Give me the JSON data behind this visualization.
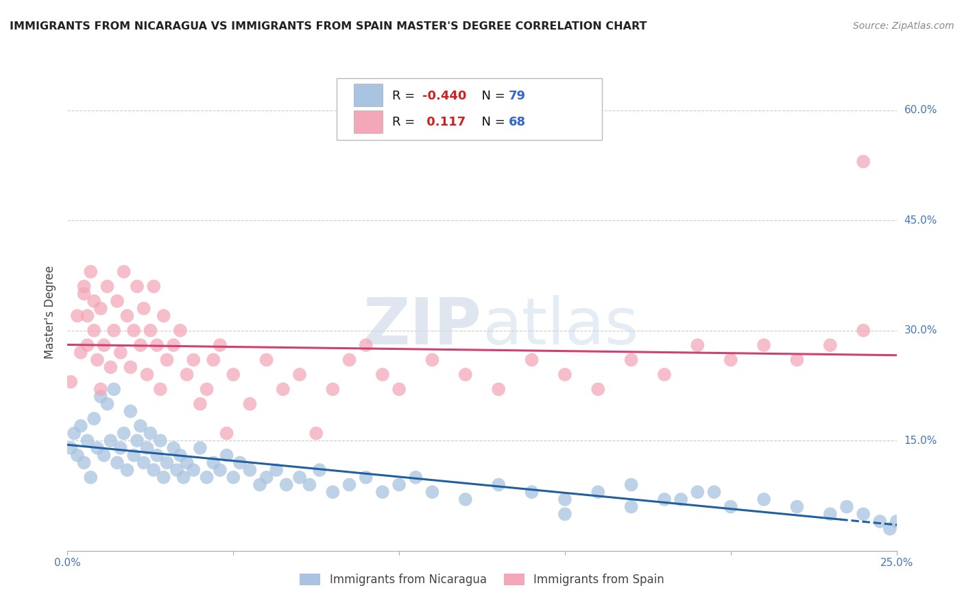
{
  "title": "IMMIGRANTS FROM NICARAGUA VS IMMIGRANTS FROM SPAIN MASTER'S DEGREE CORRELATION CHART",
  "source": "Source: ZipAtlas.com",
  "ylabel": "Master's Degree",
  "xlim": [
    0.0,
    0.25
  ],
  "ylim": [
    0.0,
    0.65
  ],
  "grid_color": "#cccccc",
  "background_color": "#ffffff",
  "nicaragua_color": "#a8c4e0",
  "spain_color": "#f4a7b9",
  "nicaragua_line_color": "#2060a0",
  "spain_line_color": "#d04070",
  "R_nicaragua": -0.44,
  "N_nicaragua": 79,
  "R_spain": 0.117,
  "N_spain": 68,
  "legend_label_nicaragua": "Immigrants from Nicaragua",
  "legend_label_spain": "Immigrants from Spain",
  "nicaragua_x": [
    0.001,
    0.002,
    0.003,
    0.004,
    0.005,
    0.006,
    0.007,
    0.008,
    0.009,
    0.01,
    0.011,
    0.012,
    0.013,
    0.014,
    0.015,
    0.016,
    0.017,
    0.018,
    0.019,
    0.02,
    0.021,
    0.022,
    0.023,
    0.024,
    0.025,
    0.026,
    0.027,
    0.028,
    0.029,
    0.03,
    0.032,
    0.033,
    0.034,
    0.035,
    0.036,
    0.038,
    0.04,
    0.042,
    0.044,
    0.046,
    0.048,
    0.05,
    0.052,
    0.055,
    0.058,
    0.06,
    0.063,
    0.066,
    0.07,
    0.073,
    0.076,
    0.08,
    0.085,
    0.09,
    0.095,
    0.1,
    0.105,
    0.11,
    0.12,
    0.13,
    0.14,
    0.15,
    0.16,
    0.17,
    0.18,
    0.19,
    0.2,
    0.21,
    0.22,
    0.23,
    0.235,
    0.24,
    0.245,
    0.248,
    0.25,
    0.15,
    0.17,
    0.185,
    0.195
  ],
  "nicaragua_y": [
    0.14,
    0.16,
    0.13,
    0.17,
    0.12,
    0.15,
    0.1,
    0.18,
    0.14,
    0.21,
    0.13,
    0.2,
    0.15,
    0.22,
    0.12,
    0.14,
    0.16,
    0.11,
    0.19,
    0.13,
    0.15,
    0.17,
    0.12,
    0.14,
    0.16,
    0.11,
    0.13,
    0.15,
    0.1,
    0.12,
    0.14,
    0.11,
    0.13,
    0.1,
    0.12,
    0.11,
    0.14,
    0.1,
    0.12,
    0.11,
    0.13,
    0.1,
    0.12,
    0.11,
    0.09,
    0.1,
    0.11,
    0.09,
    0.1,
    0.09,
    0.11,
    0.08,
    0.09,
    0.1,
    0.08,
    0.09,
    0.1,
    0.08,
    0.07,
    0.09,
    0.08,
    0.07,
    0.08,
    0.09,
    0.07,
    0.08,
    0.06,
    0.07,
    0.06,
    0.05,
    0.06,
    0.05,
    0.04,
    0.03,
    0.04,
    0.05,
    0.06,
    0.07,
    0.08
  ],
  "spain_x": [
    0.001,
    0.003,
    0.004,
    0.005,
    0.006,
    0.007,
    0.008,
    0.009,
    0.01,
    0.011,
    0.012,
    0.013,
    0.014,
    0.015,
    0.016,
    0.017,
    0.018,
    0.019,
    0.02,
    0.021,
    0.022,
    0.023,
    0.024,
    0.025,
    0.026,
    0.027,
    0.028,
    0.029,
    0.03,
    0.032,
    0.034,
    0.036,
    0.038,
    0.04,
    0.042,
    0.044,
    0.046,
    0.048,
    0.05,
    0.055,
    0.06,
    0.065,
    0.07,
    0.075,
    0.08,
    0.085,
    0.09,
    0.095,
    0.1,
    0.11,
    0.12,
    0.13,
    0.14,
    0.15,
    0.16,
    0.17,
    0.18,
    0.19,
    0.2,
    0.21,
    0.22,
    0.23,
    0.24,
    0.005,
    0.006,
    0.008,
    0.01,
    0.24
  ],
  "spain_y": [
    0.23,
    0.32,
    0.27,
    0.35,
    0.28,
    0.38,
    0.3,
    0.26,
    0.33,
    0.28,
    0.36,
    0.25,
    0.3,
    0.34,
    0.27,
    0.38,
    0.32,
    0.25,
    0.3,
    0.36,
    0.28,
    0.33,
    0.24,
    0.3,
    0.36,
    0.28,
    0.22,
    0.32,
    0.26,
    0.28,
    0.3,
    0.24,
    0.26,
    0.2,
    0.22,
    0.26,
    0.28,
    0.16,
    0.24,
    0.2,
    0.26,
    0.22,
    0.24,
    0.16,
    0.22,
    0.26,
    0.28,
    0.24,
    0.22,
    0.26,
    0.24,
    0.22,
    0.26,
    0.24,
    0.22,
    0.26,
    0.24,
    0.28,
    0.26,
    0.28,
    0.26,
    0.28,
    0.3,
    0.36,
    0.32,
    0.34,
    0.22,
    0.53
  ]
}
